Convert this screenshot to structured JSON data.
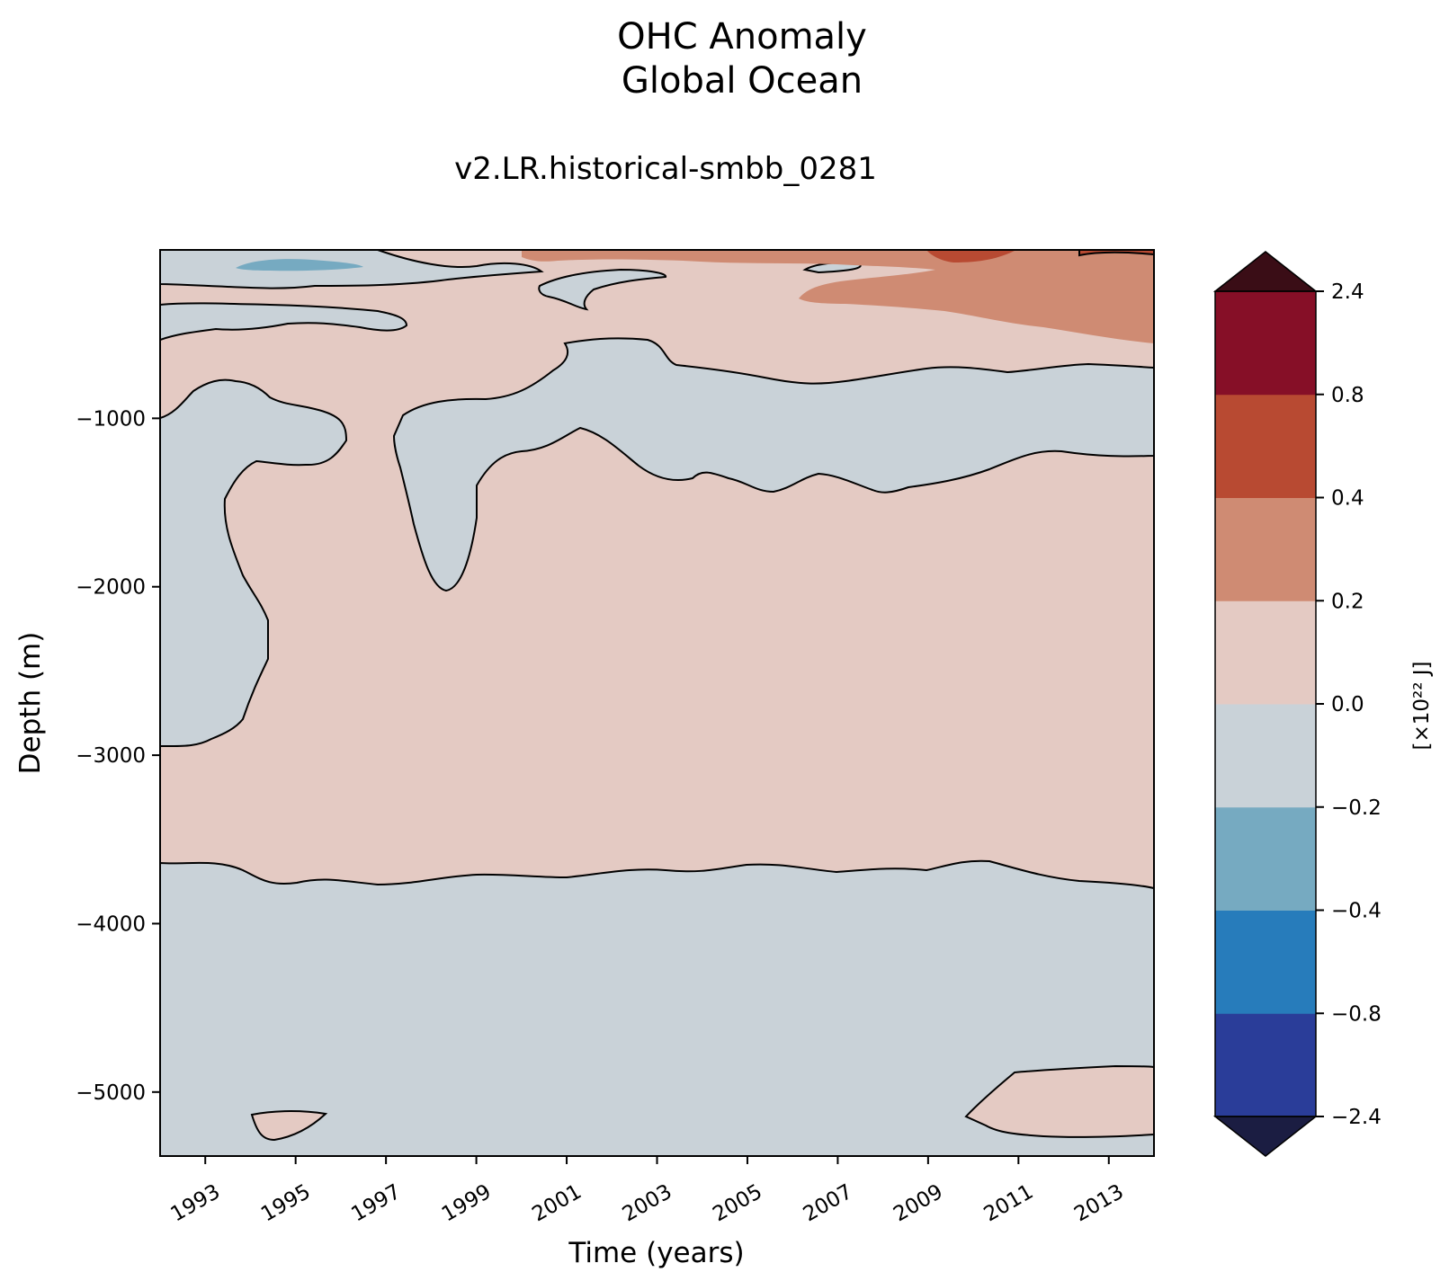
{
  "chart_data": {
    "type": "heatmap",
    "title_lines": [
      "OHC Anomaly",
      "Global Ocean"
    ],
    "subtitle": "v2.LR.historical-smbb_0281",
    "xlabel": "Time (years)",
    "ylabel": "Depth (m)",
    "xlim": [
      1992,
      2014
    ],
    "ylim": [
      -5380,
      0
    ],
    "x_ticks": [
      1993,
      1995,
      1997,
      1999,
      2001,
      2003,
      2005,
      2007,
      2009,
      2011,
      2013
    ],
    "y_ticks": [
      -1000,
      -2000,
      -3000,
      -4000,
      -5000
    ],
    "colorbar": {
      "label": "[×10²² J]",
      "levels": [
        -2.4,
        -0.8,
        -0.4,
        -0.2,
        0.0,
        0.2,
        0.4,
        0.8,
        2.4
      ],
      "tick_labels": [
        "−2.4",
        "−0.8",
        "−0.4",
        "−0.2",
        "0.0",
        "0.2",
        "0.4",
        "0.8",
        "2.4"
      ],
      "colors": [
        "#2a3d99",
        "#277cbb",
        "#76aac1",
        "#c9d2d8",
        "#e4cac3",
        "#cf8b73",
        "#b84a32",
        "#860f27"
      ],
      "under_color": "#1b1d42",
      "over_color": "#3a0d16",
      "extend": "both"
    },
    "regions": [
      {
        "value_range": "0.0 to 0.2",
        "description": "positive anomaly (background, mid-depths)"
      },
      {
        "value_range": "-0.2 to 0.0",
        "description": "negative anomaly band below ~-3700 m"
      },
      {
        "value_range": "-0.2 to 0.0",
        "description": "negative band ~-700 m to -1400 m from 1997 to 2014"
      },
      {
        "value_range": "-0.2 to 0.0",
        "description": "negative lobe near 1992-1996 down to ~-2950 m"
      },
      {
        "value_range": "0.2 to 0.4",
        "description": "warm upper layer 2005-2014 near surface"
      },
      {
        "value_range": "0.4 to 0.8",
        "description": "surface patches around 2001-2014"
      },
      {
        "value_range": "-0.4 to -0.2",
        "description": "surface patch around 1994-1995"
      }
    ]
  }
}
